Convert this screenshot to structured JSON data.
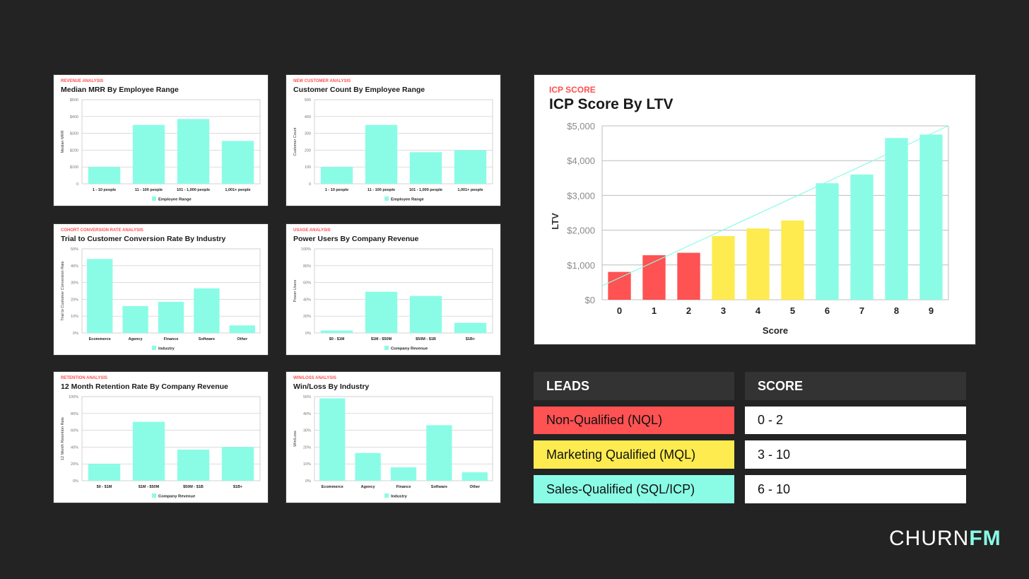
{
  "colors": {
    "background": "#232323",
    "bar": "#8afce6",
    "nql": "#ff5252",
    "mql": "#fdeb4f",
    "sql": "#8afce6",
    "eyebrow": "#ff4f4f",
    "grid": "#c8c8c8"
  },
  "charts": [
    {
      "eyebrow": "REVENUE ANALYSIS",
      "title": "Median MRR By Employee Range",
      "chart_data": {
        "type": "bar",
        "categories": [
          "1 - 10 people",
          "11 - 100 people",
          "101 - 1,000 people",
          "1,001+ people"
        ],
        "values": [
          100,
          350,
          385,
          255
        ],
        "ylim": [
          0,
          500
        ],
        "yticks": [
          "0",
          "$100",
          "$200",
          "$300",
          "$400",
          "$500"
        ],
        "ylabel": "Median MRR",
        "legend": "Employee Range"
      }
    },
    {
      "eyebrow": "NEW CUSTOMER ANALYSIS",
      "title": "Customer Count By Employee Range",
      "chart_data": {
        "type": "bar",
        "categories": [
          "1 - 10 people",
          "11 - 100 people",
          "101 - 1,000 people",
          "1,001+ people"
        ],
        "values": [
          100,
          350,
          188,
          200
        ],
        "ylim": [
          0,
          500
        ],
        "yticks": [
          "0",
          "100",
          "200",
          "300",
          "400",
          "500"
        ],
        "ylabel": "Customer Count",
        "legend": "Employee Range"
      }
    },
    {
      "eyebrow": "COHORT CONVERSION RATE ANALYSIS",
      "title": "Trial to Customer Conversion Rate By Industry",
      "chart_data": {
        "type": "bar",
        "categories": [
          "Ecommerce",
          "Agency",
          "Finance",
          "Software",
          "Other"
        ],
        "values": [
          44,
          16,
          18.5,
          26.5,
          4.5
        ],
        "ylim": [
          0,
          50
        ],
        "yticks": [
          "0%",
          "10%",
          "20%",
          "30%",
          "40%",
          "50%"
        ],
        "ylabel": "Trial to Customer Conversion Rate",
        "legend": "Industry"
      }
    },
    {
      "eyebrow": "USAGE ANALYSIS",
      "title": "Power Users By Company Revenue",
      "chart_data": {
        "type": "bar",
        "categories": [
          "$0 - $1M",
          "$1M - $50M",
          "$50M - $1B",
          "$1B+"
        ],
        "values": [
          3,
          49,
          44,
          12
        ],
        "ylim": [
          0,
          100
        ],
        "yticks": [
          "0%",
          "20%",
          "40%",
          "60%",
          "80%",
          "100%"
        ],
        "ylabel": "Power Users",
        "legend": "Company Revenue"
      }
    },
    {
      "eyebrow": "RETENTION ANALYSIS",
      "title": "12 Month Retention Rate By Company Revenue",
      "chart_data": {
        "type": "bar",
        "categories": [
          "$0 - $1M",
          "$1M - $50M",
          "$50M - $1B",
          "$1B+"
        ],
        "values": [
          20,
          70,
          37,
          40
        ],
        "ylim": [
          0,
          100
        ],
        "yticks": [
          "0%",
          "20%",
          "40%",
          "60%",
          "80%",
          "100%"
        ],
        "ylabel": "12 Month Retention Rate",
        "legend": "Company Revenue"
      }
    },
    {
      "eyebrow": "WIN/LOSS ANALYSIS",
      "title": "Win/Loss By Industry",
      "chart_data": {
        "type": "bar",
        "categories": [
          "Ecommerce",
          "Agency",
          "Finance",
          "Software",
          "Other"
        ],
        "values": [
          49,
          16.5,
          8,
          33,
          5
        ],
        "ylim": [
          0,
          50
        ],
        "yticks": [
          "0%",
          "10%",
          "20%",
          "30%",
          "40%",
          "50%"
        ],
        "ylabel": "Win/Loss",
        "legend": "Industry"
      }
    }
  ],
  "icp": {
    "eyebrow": "ICP SCORE",
    "title": "ICP Score By LTV",
    "chart_data": {
      "type": "bar",
      "categories": [
        "0",
        "1",
        "2",
        "3",
        "4",
        "5",
        "6",
        "7",
        "8",
        "9"
      ],
      "values": [
        800,
        1280,
        1350,
        1830,
        2050,
        2280,
        3350,
        3600,
        4650,
        4750
      ],
      "bar_groups": [
        "nql",
        "nql",
        "nql",
        "mql",
        "mql",
        "mql",
        "sql",
        "sql",
        "sql",
        "sql"
      ],
      "trendline": {
        "start": 400,
        "end": 5000
      },
      "ylim": [
        0,
        5000
      ],
      "yticks": [
        "$0",
        "$1,000",
        "$2,000",
        "$3,000",
        "$4,000",
        "$5,000"
      ],
      "xlabel": "Score",
      "ylabel": "LTV"
    }
  },
  "legend_table": {
    "leads_header": "LEADS",
    "score_header": "SCORE",
    "rows": [
      {
        "lead": "Non-Qualified (NQL)",
        "score": "0 - 2",
        "group": "nql"
      },
      {
        "lead": "Marketing Qualified (MQL)",
        "score": "3 - 10",
        "group": "mql"
      },
      {
        "lead": "Sales-Qualified (SQL/ICP)",
        "score": "6 - 10",
        "group": "sql"
      }
    ]
  },
  "brand": {
    "part1": "CHURN",
    "part2": "FM"
  }
}
